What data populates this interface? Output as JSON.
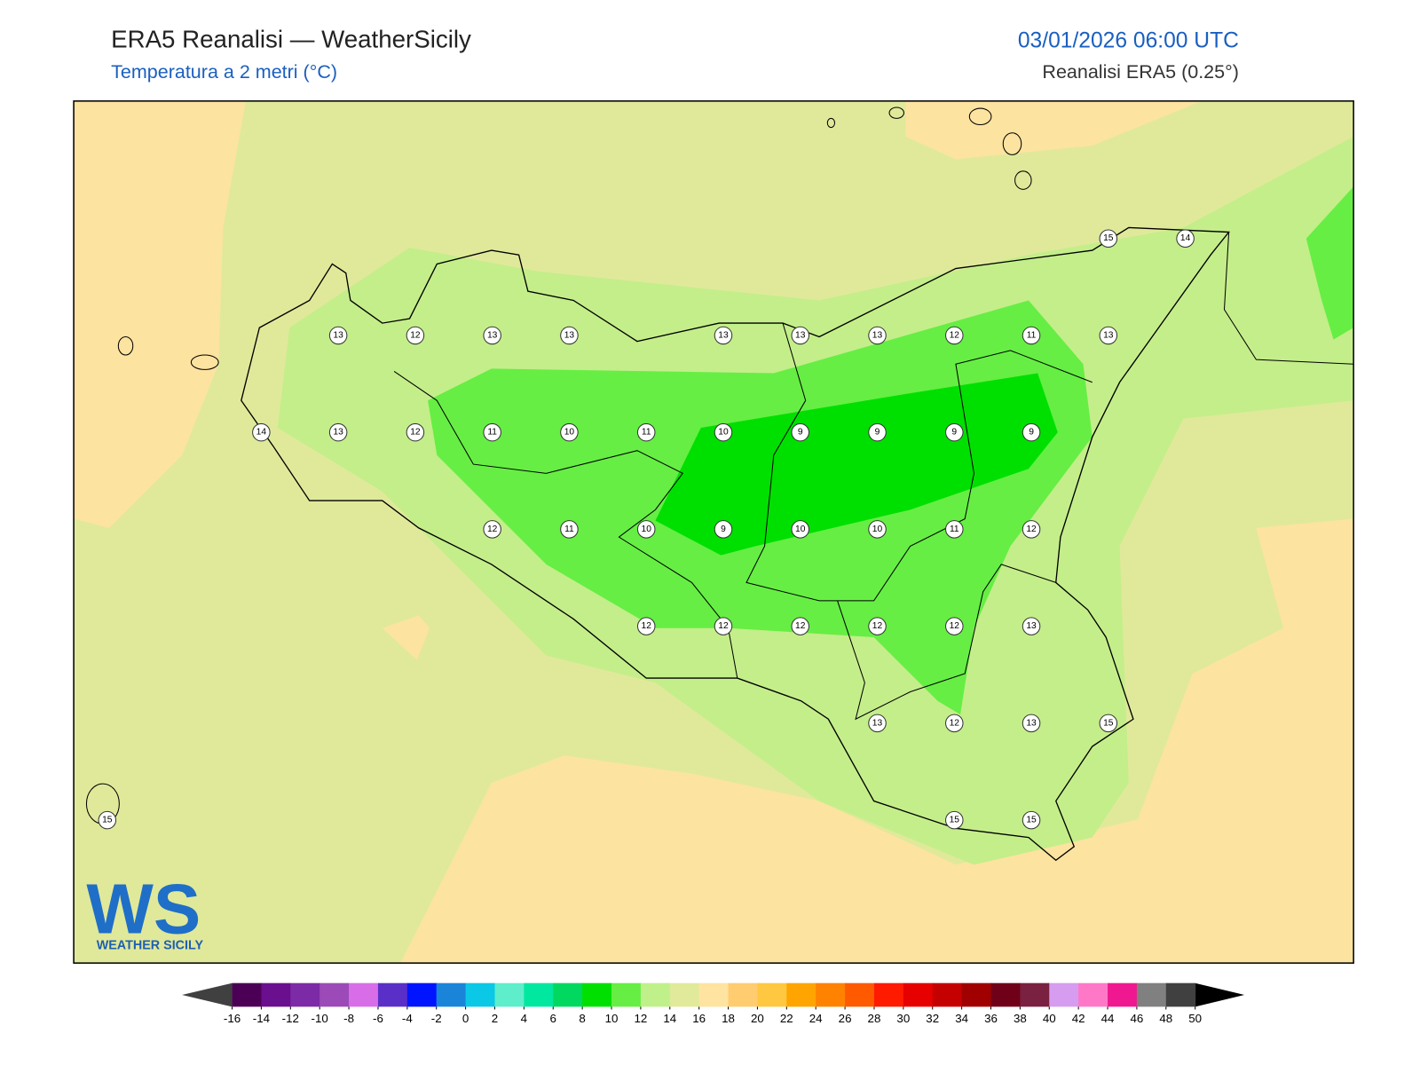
{
  "header": {
    "title": "ERA5 Reanalisi — WeatherSicily",
    "subtitle": "Temperatura a 2 metri (°C)",
    "datetime": "03/01/2026 06:00 UTC",
    "source": "Reanalisi ERA5 (0.25°)"
  },
  "stations": {
    "values": [
      15,
      14,
      13,
      12,
      13,
      13,
      13,
      13,
      13,
      12,
      11,
      13,
      14,
      13,
      12,
      11,
      10,
      11,
      10,
      9,
      9,
      9,
      9,
      12,
      11,
      10,
      9,
      10,
      10,
      11,
      12,
      12,
      12,
      12,
      12,
      12,
      13,
      13,
      12,
      13,
      15,
      15,
      15,
      15
    ]
  },
  "logo": {
    "mark": "WS",
    "text": "WEATHER SICILY"
  },
  "colorbar": {
    "ticks": [
      -16,
      -14,
      -12,
      -10,
      -8,
      -6,
      -4,
      -2,
      0,
      2,
      4,
      6,
      8,
      10,
      12,
      14,
      16,
      18,
      20,
      22,
      24,
      26,
      28,
      30,
      32,
      34,
      36,
      38,
      40,
      42,
      44,
      46,
      48,
      50
    ],
    "colors": [
      "#4b0056",
      "#6a0f8e",
      "#7d2aa6",
      "#9b4ab8",
      "#d76ee8",
      "#5a2fc8",
      "#0014ff",
      "#1a85d8",
      "#0ac8e6",
      "#5eeecc",
      "#00e8a0",
      "#00d860",
      "#00e000",
      "#66ee44",
      "#c0f08a",
      "#e0ea9a",
      "#ffe3a0",
      "#ffcc70",
      "#ffc840",
      "#ffa400",
      "#ff8200",
      "#ff5a00",
      "#ff1a00",
      "#e60000",
      "#c40000",
      "#a00000",
      "#700018",
      "#7a2040",
      "#d69cf0",
      "#ff78c8",
      "#f01890",
      "#808080",
      "#404040"
    ],
    "under_color": "#404040",
    "over_color": "#000000"
  }
}
